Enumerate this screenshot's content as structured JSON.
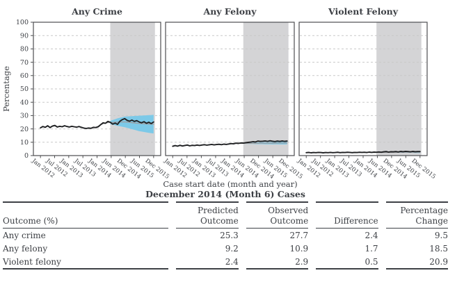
{
  "figure": {
    "ylabel": "Percentage",
    "xlabel": "Case start date (month and year)",
    "x_tick_labels": [
      "Jan 2012",
      "Jul 2012",
      "Jan 2013",
      "Jul 2013",
      "Jan 2014",
      "Jun 2014",
      "Dec 2014",
      "Jun 2015",
      "Dec 2015"
    ],
    "y_ticks": [
      0,
      10,
      20,
      30,
      40,
      50,
      60,
      70,
      80,
      90,
      100
    ]
  },
  "colors": {
    "text": "#3d4045",
    "border": "#4d4e50",
    "grid": "#c8c8c8",
    "shaded": "#d4d4d6",
    "band": "#7cc9e8",
    "observed": "#1f2022",
    "predicted": "#9b9da0"
  },
  "chart_data": [
    {
      "type": "line",
      "title": "Any Crime",
      "ylim": [
        0,
        100
      ],
      "grid": true,
      "x_range": [
        "Jan 2012",
        "Dec 2015"
      ],
      "x_interval": "monthly",
      "shaded_region": {
        "from": "Jun 2014",
        "to": "Dec 2015"
      },
      "series": [
        {
          "name": "Observed",
          "color": "#1f2022",
          "width": 1.9,
          "values": [
            20.8,
            21.8,
            21.2,
            22.4,
            21.0,
            22.2,
            22.6,
            21.4,
            22.0,
            21.6,
            22.4,
            21.8,
            21.4,
            22.0,
            21.6,
            21.3,
            21.8,
            21.2,
            20.6,
            20.3,
            20.7,
            20.4,
            21.2,
            21.0,
            21.6,
            23.2,
            24.6,
            24.2,
            25.6,
            25.0,
            23.6,
            24.4,
            23.4,
            25.8,
            27.0,
            27.7,
            26.4,
            25.8,
            26.6,
            25.6,
            26.2,
            25.2,
            24.6,
            25.4,
            24.2,
            25.0,
            24.0,
            25.2
          ]
        },
        {
          "name": "Predicted",
          "color": "#9b9da0",
          "width": 1.4,
          "values": [
            21.0,
            21.5,
            21.3,
            22.0,
            21.3,
            22.0,
            22.3,
            21.6,
            21.9,
            21.7,
            22.2,
            21.9,
            21.5,
            21.8,
            21.6,
            21.4,
            21.6,
            21.1,
            20.7,
            20.5,
            20.7,
            20.6,
            21.1,
            21.2,
            22.0,
            23.0,
            24.0,
            24.3,
            24.8,
            24.8,
            24.9,
            25.0,
            25.1,
            25.2,
            25.2,
            25.3,
            25.1,
            24.9,
            24.7,
            24.5,
            24.3,
            24.1,
            24.0,
            23.9,
            23.8,
            23.7,
            23.6,
            23.6
          ]
        }
      ],
      "confidence_band": {
        "start": "Jun 2014",
        "color": "#7cc9e8",
        "lower": [
          23.6,
          23.1,
          22.7,
          22.3,
          22.0,
          21.6,
          21.3,
          20.8,
          20.3,
          19.8,
          19.3,
          18.8,
          18.3,
          18.0,
          17.7,
          17.4,
          17.1,
          16.8,
          16.6
        ],
        "upper": [
          26.0,
          26.7,
          27.3,
          27.9,
          28.4,
          28.8,
          29.3,
          29.4,
          29.5,
          29.6,
          29.7,
          29.8,
          29.9,
          30.0,
          30.1,
          30.2,
          30.3,
          30.4,
          30.6
        ]
      }
    },
    {
      "type": "line",
      "title": "Any Felony",
      "ylim": [
        0,
        100
      ],
      "grid": true,
      "x_range": [
        "Jan 2012",
        "Dec 2015"
      ],
      "x_interval": "monthly",
      "shaded_region": {
        "from": "Jun 2014",
        "to": "Dec 2015"
      },
      "series": [
        {
          "name": "Observed",
          "color": "#1f2022",
          "width": 1.9,
          "values": [
            7.0,
            7.5,
            7.1,
            7.7,
            7.2,
            7.6,
            7.9,
            7.3,
            7.7,
            7.5,
            7.9,
            7.6,
            7.9,
            8.2,
            7.8,
            8.1,
            8.4,
            8.0,
            8.3,
            8.5,
            8.2,
            8.6,
            8.4,
            8.7,
            9.0,
            8.8,
            9.3,
            9.1,
            9.5,
            9.3,
            9.7,
            9.9,
            10.1,
            10.4,
            10.2,
            10.9,
            10.6,
            10.8,
            11.0,
            10.7,
            11.1,
            10.8,
            10.5,
            10.9,
            10.6,
            11.0,
            10.7,
            10.9
          ]
        },
        {
          "name": "Predicted",
          "color": "#9b9da0",
          "width": 1.4,
          "values": [
            7.1,
            7.4,
            7.1,
            7.6,
            7.2,
            7.5,
            7.8,
            7.4,
            7.6,
            7.5,
            7.8,
            7.6,
            7.9,
            8.1,
            7.9,
            8.1,
            8.3,
            8.0,
            8.3,
            8.4,
            8.2,
            8.5,
            8.4,
            8.6,
            8.9,
            8.9,
            9.2,
            9.1,
            9.3,
            9.2,
            9.2,
            9.2,
            9.2,
            9.2,
            9.2,
            9.2,
            9.3,
            9.3,
            9.3,
            9.4,
            9.4,
            9.4,
            9.4,
            9.5,
            9.5,
            9.5,
            9.5,
            9.5
          ]
        }
      ],
      "confidence_band": {
        "start": "Jun 2014",
        "color": "#7cc9e8",
        "lower": [
          8.9,
          8.8,
          8.8,
          8.7,
          8.7,
          8.6,
          8.6,
          8.6,
          8.6,
          8.5,
          8.5,
          8.5,
          8.4,
          8.5,
          8.5,
          8.4,
          8.4,
          8.4,
          8.4
        ],
        "upper": [
          9.5,
          9.6,
          9.7,
          9.7,
          9.8,
          9.8,
          9.9,
          10.0,
          10.1,
          10.1,
          10.1,
          10.2,
          10.2,
          10.3,
          10.4,
          10.4,
          10.4,
          10.5,
          10.6
        ]
      }
    },
    {
      "type": "line",
      "title": "Violent Felony",
      "ylim": [
        0,
        100
      ],
      "grid": true,
      "x_range": [
        "Jan 2012",
        "Dec 2015"
      ],
      "x_interval": "monthly",
      "shaded_region": {
        "from": "Jun 2014",
        "to": "Dec 2015"
      },
      "series": [
        {
          "name": "Observed",
          "color": "#1f2022",
          "width": 1.9,
          "values": [
            2.2,
            2.4,
            2.1,
            2.3,
            2.2,
            2.4,
            2.3,
            2.1,
            2.3,
            2.2,
            2.4,
            2.2,
            2.3,
            2.5,
            2.2,
            2.4,
            2.3,
            2.5,
            2.4,
            2.2,
            2.4,
            2.3,
            2.5,
            2.4,
            2.5,
            2.3,
            2.6,
            2.4,
            2.6,
            2.5,
            2.7,
            2.5,
            2.8,
            3.0,
            2.6,
            2.9,
            2.8,
            3.0,
            2.7,
            3.1,
            2.9,
            3.2,
            3.0,
            2.8,
            3.1,
            2.9,
            3.0,
            3.0
          ]
        },
        {
          "name": "Predicted",
          "color": "#9b9da0",
          "width": 1.4,
          "values": [
            2.2,
            2.3,
            2.2,
            2.3,
            2.2,
            2.3,
            2.3,
            2.2,
            2.3,
            2.2,
            2.3,
            2.2,
            2.3,
            2.4,
            2.3,
            2.4,
            2.3,
            2.4,
            2.4,
            2.3,
            2.4,
            2.3,
            2.4,
            2.4,
            2.4,
            2.4,
            2.5,
            2.4,
            2.5,
            2.4,
            2.4,
            2.4,
            2.4,
            2.4,
            2.4,
            2.4,
            2.4,
            2.4,
            2.5,
            2.5,
            2.5,
            2.5,
            2.5,
            2.5,
            2.5,
            2.5,
            2.5,
            2.5
          ]
        }
      ],
      "confidence_band": {
        "start": "Jun 2014",
        "color": "#7cc9e8",
        "lower": [
          2.3,
          2.2,
          2.2,
          2.2,
          2.2,
          2.1,
          2.1,
          2.1,
          2.1,
          2.1,
          2.1,
          2.1,
          2.1,
          2.1,
          2.1,
          2.1,
          2.0,
          2.0,
          2.0
        ],
        "upper": [
          2.6,
          2.6,
          2.7,
          2.7,
          2.7,
          2.7,
          2.7,
          2.7,
          2.7,
          2.8,
          2.8,
          2.8,
          2.9,
          2.9,
          2.9,
          2.9,
          3.0,
          3.0,
          3.0
        ]
      }
    }
  ],
  "table": {
    "title": "December 2014 (Month 6) Cases",
    "headers": [
      "Outcome (%)",
      "Predicted\nOutcome",
      "Observed\nOutcome",
      "Difference",
      "Percentage\nChange"
    ],
    "rows": [
      {
        "label": "Any crime",
        "values": [
          "25.3",
          "27.7",
          "2.4",
          "9.5"
        ]
      },
      {
        "label": "Any felony",
        "values": [
          "9.2",
          "10.9",
          "1.7",
          "18.5"
        ]
      },
      {
        "label": "Violent felony",
        "values": [
          "2.4",
          "2.9",
          "0.5",
          "20.9"
        ]
      }
    ]
  }
}
